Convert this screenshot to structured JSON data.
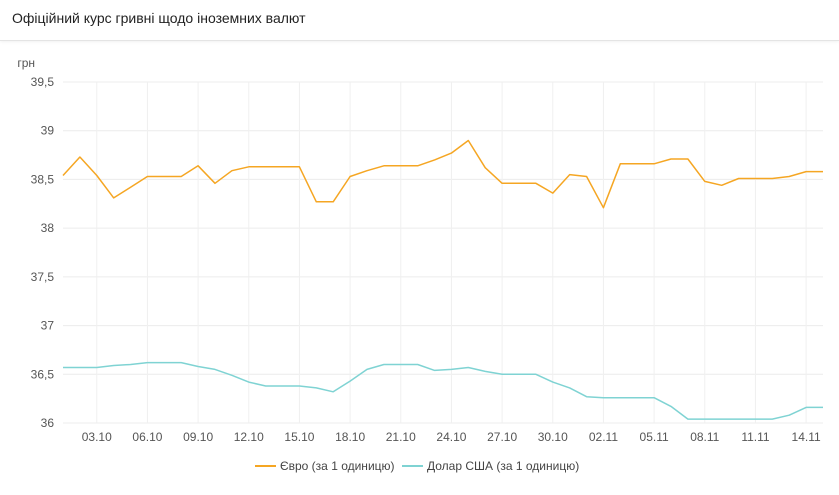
{
  "title": "Офіційний курс гривні щодо іноземних валют",
  "chart_data": {
    "type": "line",
    "ylabel": "грн",
    "ylim": [
      36,
      39.5
    ],
    "yticks": [
      "39,5",
      "39",
      "38,5",
      "38",
      "37,5",
      "37",
      "36,5",
      "36"
    ],
    "ytick_values": [
      39.5,
      39,
      38.5,
      38,
      37.5,
      37,
      36.5,
      36
    ],
    "xticks": [
      "03.10",
      "06.10",
      "09.10",
      "12.10",
      "15.10",
      "18.10",
      "21.10",
      "24.10",
      "27.10",
      "30.10",
      "02.11",
      "05.11",
      "08.11",
      "11.11",
      "14.11"
    ],
    "xtick_positions": [
      2,
      5,
      8,
      11,
      14,
      17,
      20,
      23,
      26,
      29,
      32,
      35,
      38,
      41,
      44
    ],
    "x": [
      0,
      1,
      2,
      3,
      4,
      5,
      6,
      7,
      8,
      9,
      10,
      11,
      12,
      13,
      14,
      15,
      16,
      17,
      18,
      19,
      20,
      21,
      22,
      23,
      24,
      25,
      26,
      27,
      28,
      29,
      30,
      31,
      32,
      33,
      34,
      35,
      36,
      37,
      38,
      39,
      40,
      41,
      42,
      43,
      44,
      45
    ],
    "grid": true,
    "legend_position": "bottom",
    "colors": {
      "euro": "#f5a623",
      "usd": "#7fd3d3"
    },
    "series": [
      {
        "name": "Євро (за 1 одиницю)",
        "color": "#f5a623",
        "values": [
          38.54,
          38.73,
          38.54,
          38.31,
          38.42,
          38.53,
          38.53,
          38.53,
          38.64,
          38.46,
          38.59,
          38.63,
          38.63,
          38.63,
          38.63,
          38.27,
          38.27,
          38.53,
          38.59,
          38.64,
          38.64,
          38.64,
          38.7,
          38.77,
          38.9,
          38.62,
          38.46,
          38.46,
          38.46,
          38.36,
          38.55,
          38.53,
          38.21,
          38.66,
          38.66,
          38.66,
          38.71,
          38.71,
          38.48,
          38.44,
          38.51,
          38.51,
          38.51,
          38.53,
          38.58,
          38.58
        ]
      },
      {
        "name": "Долар США (за 1 одиницю)",
        "color": "#7fd3d3",
        "values": [
          36.57,
          36.57,
          36.57,
          36.59,
          36.6,
          36.62,
          36.62,
          36.62,
          36.58,
          36.55,
          36.49,
          36.42,
          36.38,
          36.38,
          36.38,
          36.36,
          36.32,
          36.43,
          36.55,
          36.6,
          36.6,
          36.6,
          36.54,
          36.55,
          36.57,
          36.53,
          36.5,
          36.5,
          36.5,
          36.42,
          36.36,
          36.27,
          36.26,
          36.26,
          36.26,
          36.26,
          36.17,
          36.04,
          36.04,
          36.04,
          36.04,
          36.04,
          36.04,
          36.08,
          36.16,
          36.16
        ]
      }
    ]
  }
}
